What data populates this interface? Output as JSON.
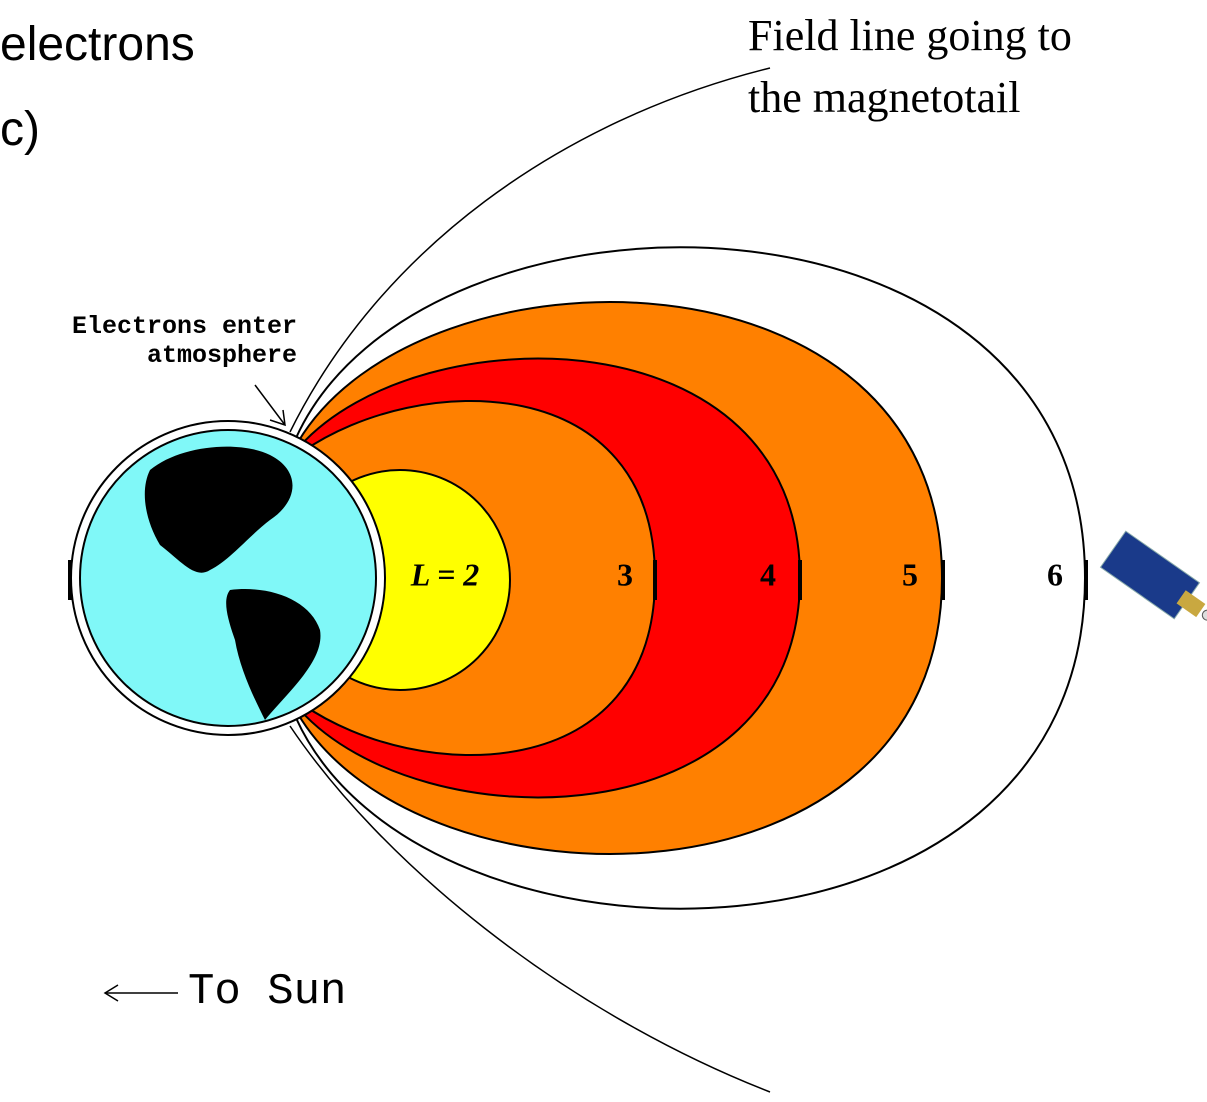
{
  "title_lines": [
    "electrons",
    "c)"
  ],
  "annotation": {
    "lines": [
      "Field line going to",
      "the magnetotail"
    ]
  },
  "callout": {
    "lines": [
      "Electrons enter",
      "atmosphere"
    ]
  },
  "shells": [
    "L = 2",
    "3",
    "4",
    "5",
    "6"
  ],
  "direction": "To Sun"
}
